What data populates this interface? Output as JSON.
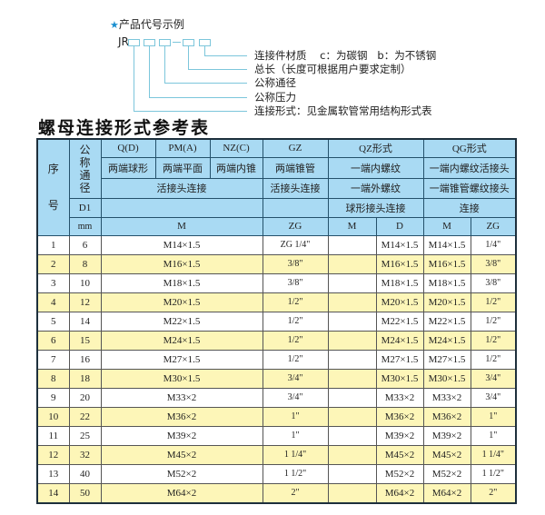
{
  "legend": {
    "title": "产品代号示例",
    "star_icon": "star-icon",
    "prefix": "JR",
    "items": [
      "连接件材质    c：为碳钢   b：为不锈钢",
      "总长（长度可根据用户要求定制）",
      "公称通径",
      "公称压力",
      "连接形式：见金属软管常用结构形式表"
    ]
  },
  "table_title": "螺母连接形式参考表",
  "header": {
    "seq": "序号",
    "nominal": "公称通径",
    "d1": "D1",
    "mm": "mm",
    "row1": [
      "Q(D)",
      "PM(A)",
      "NZ(C)",
      "GZ",
      "QZ形式",
      "QG形式"
    ],
    "row2": [
      "两端球形",
      "两端平面",
      "两端内锥",
      "两端锥管",
      "一端内螺纹",
      "一端内螺纹活接头"
    ],
    "row3": [
      "活接头连接",
      "活接头连接",
      "一端外螺纹",
      "一端锥管螺纹接头"
    ],
    "row4": [
      "",
      "",
      "球形接头连接",
      "连接"
    ],
    "row5": [
      "M",
      "ZG",
      "M",
      "D",
      "M",
      "ZG"
    ]
  },
  "colors": {
    "header_bg": "#a9daf3",
    "alt_row_bg": "#fdf6b8",
    "leader_line": "#7cc6db"
  },
  "rows": [
    {
      "no": "1",
      "dn": "6",
      "m": "M14×1.5",
      "gz": "ZG 1/4\"",
      "qz_m": "",
      "qz_d": "M14×1.5",
      "qg_m": "M14×1.5",
      "qg_zg": "1/4\""
    },
    {
      "no": "2",
      "dn": "8",
      "m": "M16×1.5",
      "gz": "3/8\"",
      "qz_m": "",
      "qz_d": "M16×1.5",
      "qg_m": "M16×1.5",
      "qg_zg": "3/8\""
    },
    {
      "no": "3",
      "dn": "10",
      "m": "M18×1.5",
      "gz": "3/8\"",
      "qz_m": "",
      "qz_d": "M18×1.5",
      "qg_m": "M18×1.5",
      "qg_zg": "3/8\""
    },
    {
      "no": "4",
      "dn": "12",
      "m": "M20×1.5",
      "gz": "1/2\"",
      "qz_m": "",
      "qz_d": "M20×1.5",
      "qg_m": "M20×1.5",
      "qg_zg": "1/2\""
    },
    {
      "no": "5",
      "dn": "14",
      "m": "M22×1.5",
      "gz": "1/2\"",
      "qz_m": "",
      "qz_d": "M22×1.5",
      "qg_m": "M22×1.5",
      "qg_zg": "1/2\""
    },
    {
      "no": "6",
      "dn": "15",
      "m": "M24×1.5",
      "gz": "1/2\"",
      "qz_m": "",
      "qz_d": "M24×1.5",
      "qg_m": "M24×1.5",
      "qg_zg": "1/2\""
    },
    {
      "no": "7",
      "dn": "16",
      "m": "M27×1.5",
      "gz": "1/2\"",
      "qz_m": "",
      "qz_d": "M27×1.5",
      "qg_m": "M27×1.5",
      "qg_zg": "1/2\""
    },
    {
      "no": "8",
      "dn": "18",
      "m": "M30×1.5",
      "gz": "3/4\"",
      "qz_m": "",
      "qz_d": "M30×1.5",
      "qg_m": "M30×1.5",
      "qg_zg": "3/4\""
    },
    {
      "no": "9",
      "dn": "20",
      "m": "M33×2",
      "gz": "3/4\"",
      "qz_m": "",
      "qz_d": "M33×2",
      "qg_m": "M33×2",
      "qg_zg": "3/4\""
    },
    {
      "no": "10",
      "dn": "22",
      "m": "M36×2",
      "gz": "1\"",
      "qz_m": "",
      "qz_d": "M36×2",
      "qg_m": "M36×2",
      "qg_zg": "1\""
    },
    {
      "no": "11",
      "dn": "25",
      "m": "M39×2",
      "gz": "1\"",
      "qz_m": "",
      "qz_d": "M39×2",
      "qg_m": "M39×2",
      "qg_zg": "1\""
    },
    {
      "no": "12",
      "dn": "32",
      "m": "M45×2",
      "gz": "1 1/4\"",
      "qz_m": "",
      "qz_d": "M45×2",
      "qg_m": "M45×2",
      "qg_zg": "1 1/4\""
    },
    {
      "no": "13",
      "dn": "40",
      "m": "M52×2",
      "gz": "1 1/2\"",
      "qz_m": "",
      "qz_d": "M52×2",
      "qg_m": "M52×2",
      "qg_zg": "1 1/2\""
    },
    {
      "no": "14",
      "dn": "50",
      "m": "M64×2",
      "gz": "2\"",
      "qz_m": "",
      "qz_d": "M64×2",
      "qg_m": "M64×2",
      "qg_zg": "2\""
    }
  ]
}
